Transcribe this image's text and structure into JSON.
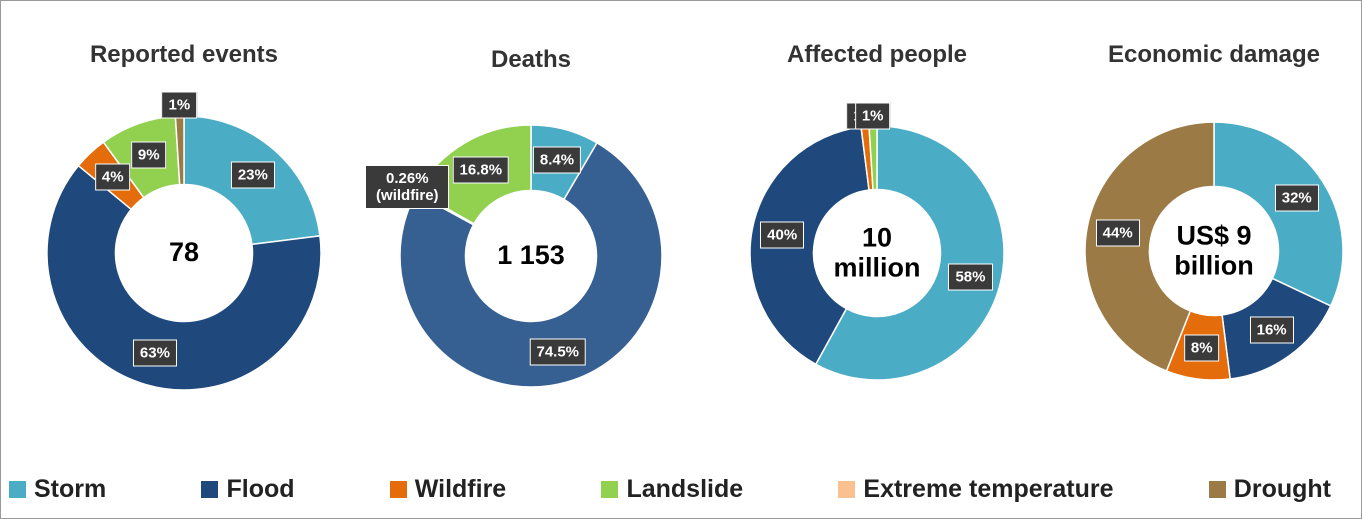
{
  "legend": {
    "items": [
      {
        "name": "Storm",
        "color": "#4bacc6"
      },
      {
        "name": "Flood",
        "color": "#1f497d"
      },
      {
        "name": "Wildfire",
        "color": "#e46c0a"
      },
      {
        "name": "Landslide",
        "color": "#92d050"
      },
      {
        "name": "Extreme temperature",
        "color": "#fac090"
      },
      {
        "name": "Drought",
        "color": "#9c7a45"
      }
    ]
  },
  "chart_data": [
    {
      "type": "pie",
      "title": "Reported events",
      "center_label": "78",
      "values": [
        23,
        63,
        4,
        9,
        null,
        1
      ],
      "value_labels": [
        "23%",
        "63%",
        "4%",
        "9%",
        null,
        "1%"
      ],
      "colors": [
        "#4bacc6",
        "#1f497d",
        "#e46c0a",
        "#92d050",
        "#fac090",
        "#9c7a45"
      ]
    },
    {
      "type": "pie",
      "title": "Deaths",
      "center_label": "1 153",
      "values": [
        8.4,
        74.5,
        0.26,
        16.8,
        null,
        null
      ],
      "value_labels": [
        "8.4%",
        "74.5%",
        "0.26% (wildfire)",
        "16.8%",
        null,
        null
      ],
      "colors": [
        "#4bacc6",
        "#366092",
        "#e46c0a",
        "#92d050",
        "#fac090",
        "#9c7a45"
      ]
    },
    {
      "type": "pie",
      "title": "Affected people",
      "center_label": "10 million",
      "values": [
        58,
        40,
        1,
        1,
        null,
        null
      ],
      "value_labels": [
        "58%",
        "40%",
        "1%",
        "1%",
        null,
        null
      ],
      "colors": [
        "#4bacc6",
        "#1f497d",
        "#e46c0a",
        "#92d050",
        "#fac090",
        "#9c7a45"
      ]
    },
    {
      "type": "pie",
      "title": "Economic damage",
      "center_label": "US$ 9 billion",
      "values": [
        32,
        16,
        8,
        null,
        null,
        44
      ],
      "value_labels": [
        "32%",
        "16%",
        "8%",
        null,
        null,
        "44%"
      ],
      "colors": [
        "#4bacc6",
        "#1f497d",
        "#e46c0a",
        "#92d050",
        "#fac090",
        "#9c7a45"
      ]
    }
  ]
}
